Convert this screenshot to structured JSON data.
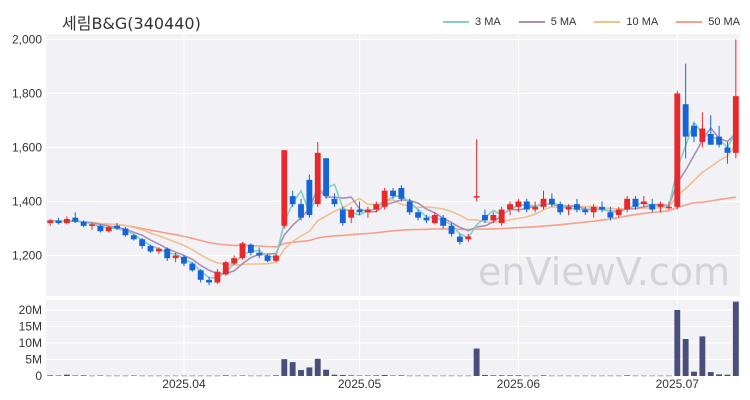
{
  "title": "세림B&G(340440)",
  "watermark": "enViewV.com",
  "colors": {
    "up": "#e8282b",
    "down": "#1565d8",
    "ma3": "#7fd1c9",
    "ma5": "#a98fb8",
    "ma10": "#f0c090",
    "ma50": "#f4a08a",
    "volume": "#4a4e7a",
    "plot_bg": "#f2f2f6"
  },
  "legend": [
    {
      "label": "3 MA",
      "color": "#7fd1c9"
    },
    {
      "label": "5 MA",
      "color": "#a98fb8"
    },
    {
      "label": "10 MA",
      "color": "#f0c090"
    },
    {
      "label": "50 MA",
      "color": "#f4a08a"
    }
  ],
  "chart_data": {
    "type": "candlestick",
    "price_axis": {
      "ylim": [
        1050,
        2020
      ],
      "ticks": [
        1200,
        1400,
        1600,
        1800,
        2000
      ],
      "tick_labels": [
        "1,200",
        "1,400",
        "1,600",
        "1,800",
        "2,000"
      ]
    },
    "volume_axis": {
      "ylim": [
        0,
        23000000
      ],
      "ticks": [
        0,
        5000000,
        10000000,
        15000000,
        20000000
      ],
      "tick_labels": [
        "0",
        "5M",
        "10M",
        "15M",
        "20M"
      ]
    },
    "x_labels": [
      {
        "index": 16,
        "label": "2025.04"
      },
      {
        "index": 37,
        "label": "2025.05"
      },
      {
        "index": 56,
        "label": "2025.06"
      },
      {
        "index": 75,
        "label": "2025.07"
      }
    ],
    "ohlc": [
      [
        1320,
        1335,
        1310,
        1330
      ],
      [
        1330,
        1340,
        1315,
        1320
      ],
      [
        1320,
        1345,
        1315,
        1335
      ],
      [
        1340,
        1360,
        1320,
        1325
      ],
      [
        1325,
        1330,
        1305,
        1310
      ],
      [
        1310,
        1320,
        1295,
        1315
      ],
      [
        1310,
        1315,
        1285,
        1290
      ],
      [
        1290,
        1310,
        1285,
        1305
      ],
      [
        1310,
        1320,
        1295,
        1300
      ],
      [
        1300,
        1305,
        1270,
        1275
      ],
      [
        1275,
        1280,
        1255,
        1260
      ],
      [
        1260,
        1265,
        1225,
        1235
      ],
      [
        1235,
        1240,
        1210,
        1215
      ],
      [
        1215,
        1230,
        1205,
        1225
      ],
      [
        1225,
        1230,
        1180,
        1190
      ],
      [
        1190,
        1210,
        1175,
        1200
      ],
      [
        1195,
        1200,
        1160,
        1170
      ],
      [
        1170,
        1175,
        1140,
        1145
      ],
      [
        1145,
        1150,
        1100,
        1110
      ],
      [
        1110,
        1120,
        1090,
        1100
      ],
      [
        1100,
        1150,
        1095,
        1140
      ],
      [
        1130,
        1180,
        1125,
        1175
      ],
      [
        1170,
        1200,
        1165,
        1190
      ],
      [
        1190,
        1250,
        1185,
        1245
      ],
      [
        1240,
        1245,
        1200,
        1210
      ],
      [
        1210,
        1230,
        1190,
        1200
      ],
      [
        1200,
        1205,
        1175,
        1180
      ],
      [
        1180,
        1205,
        1175,
        1200
      ],
      [
        1310,
        1590,
        1300,
        1590
      ],
      [
        1420,
        1440,
        1380,
        1390
      ],
      [
        1390,
        1410,
        1330,
        1340
      ],
      [
        1480,
        1500,
        1340,
        1350
      ],
      [
        1390,
        1620,
        1380,
        1580
      ],
      [
        1560,
        1560,
        1410,
        1420
      ],
      [
        1410,
        1430,
        1380,
        1390
      ],
      [
        1370,
        1380,
        1310,
        1320
      ],
      [
        1340,
        1380,
        1320,
        1370
      ],
      [
        1370,
        1400,
        1350,
        1360
      ],
      [
        1360,
        1380,
        1340,
        1370
      ],
      [
        1370,
        1400,
        1360,
        1390
      ],
      [
        1380,
        1450,
        1370,
        1440
      ],
      [
        1440,
        1450,
        1410,
        1420
      ],
      [
        1450,
        1460,
        1400,
        1410
      ],
      [
        1400,
        1410,
        1350,
        1360
      ],
      [
        1360,
        1370,
        1330,
        1340
      ],
      [
        1340,
        1350,
        1320,
        1330
      ],
      [
        1320,
        1360,
        1315,
        1350
      ],
      [
        1340,
        1350,
        1300,
        1310
      ],
      [
        1310,
        1320,
        1270,
        1280
      ],
      [
        1270,
        1280,
        1240,
        1250
      ],
      [
        1260,
        1280,
        1250,
        1270
      ],
      [
        1420,
        1630,
        1400,
        1420
      ],
      [
        1350,
        1370,
        1320,
        1330
      ],
      [
        1330,
        1360,
        1320,
        1350
      ],
      [
        1320,
        1380,
        1310,
        1370
      ],
      [
        1370,
        1400,
        1350,
        1390
      ],
      [
        1380,
        1410,
        1360,
        1400
      ],
      [
        1400,
        1410,
        1360,
        1370
      ],
      [
        1370,
        1400,
        1360,
        1380
      ],
      [
        1380,
        1440,
        1370,
        1410
      ],
      [
        1410,
        1430,
        1380,
        1390
      ],
      [
        1390,
        1400,
        1350,
        1360
      ],
      [
        1370,
        1390,
        1350,
        1380
      ],
      [
        1390,
        1410,
        1360,
        1370
      ],
      [
        1370,
        1380,
        1350,
        1360
      ],
      [
        1360,
        1390,
        1340,
        1380
      ],
      [
        1380,
        1400,
        1360,
        1370
      ],
      [
        1360,
        1380,
        1330,
        1340
      ],
      [
        1350,
        1380,
        1340,
        1370
      ],
      [
        1370,
        1420,
        1360,
        1410
      ],
      [
        1410,
        1420,
        1370,
        1380
      ],
      [
        1390,
        1420,
        1380,
        1400
      ],
      [
        1390,
        1410,
        1360,
        1370
      ],
      [
        1380,
        1400,
        1360,
        1390
      ],
      [
        1380,
        1400,
        1370,
        1380
      ],
      [
        1380,
        1810,
        1370,
        1800
      ],
      [
        1760,
        1910,
        1560,
        1640
      ],
      [
        1680,
        1690,
        1620,
        1640
      ],
      [
        1620,
        1730,
        1600,
        1670
      ],
      [
        1650,
        1720,
        1610,
        1610
      ],
      [
        1640,
        1680,
        1600,
        1610
      ],
      [
        1600,
        1620,
        1540,
        1580
      ],
      [
        1580,
        2000,
        1560,
        1790
      ]
    ],
    "volume": [
      0.2,
      0.15,
      0.4,
      0.15,
      0.2,
      0.1,
      0.15,
      0.1,
      0.1,
      0.1,
      0.15,
      0.1,
      0.1,
      0.1,
      0.1,
      0.1,
      0.1,
      0.1,
      0.1,
      0.1,
      0.1,
      0.2,
      0.1,
      0.15,
      0.1,
      0.1,
      0.1,
      0.2,
      5.1,
      4.2,
      1.8,
      2.6,
      5.2,
      1.9,
      0.4,
      0.3,
      0.2,
      0.15,
      0.15,
      0.2,
      0.3,
      0.15,
      0.2,
      0.1,
      0.1,
      0.1,
      0.1,
      0.1,
      0.1,
      0.1,
      0.1,
      8.3,
      0.3,
      0.2,
      0.2,
      0.2,
      0.2,
      0.1,
      0.1,
      0.2,
      0.1,
      0.1,
      0.1,
      0.1,
      0.1,
      0.1,
      0.1,
      0.1,
      0.1,
      0.2,
      0.1,
      0.1,
      0.1,
      0.1,
      0.1,
      20.0,
      11.2,
      1.3,
      12.0,
      1.2,
      0.5,
      0.4,
      22.5
    ]
  }
}
